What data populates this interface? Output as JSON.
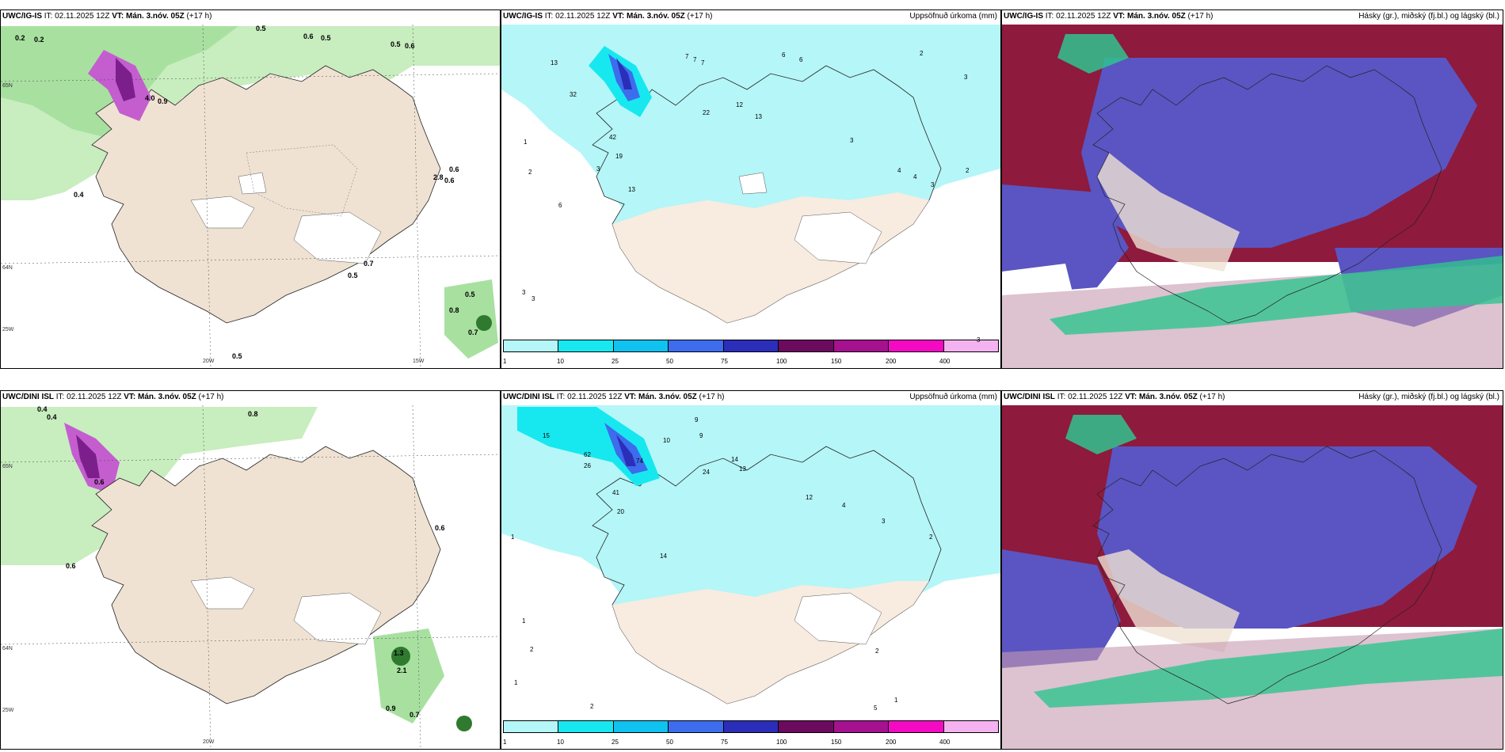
{
  "colors": {
    "land": "#efe2d3",
    "precip_light": "#b5f6f8",
    "cloud_high": "#2fc48f",
    "cloud_mid": "#5a55c2",
    "cloud_low": "#8e1a3d",
    "snow_green": "#bfe8b6",
    "snow_purple": "#c45ecf"
  },
  "rows": [
    {
      "model": "UWC/IG-IS",
      "it_label": "IT:",
      "it_value": "02.11.2025 12Z",
      "vt_label": "VT:",
      "vt_value": "Mán. 3.nóv. 05Z",
      "lead": "(+17 h)",
      "snow_labels": [
        "0.2",
        "0.2",
        "0.5",
        "0.6",
        "0.5",
        "0.5",
        "0.6",
        "4.0",
        "0.9",
        "0.4",
        "0.7",
        "0.5",
        "0.5",
        "0.8",
        "0.7",
        "0.5",
        "2.8",
        "0.6",
        "0.6"
      ],
      "precip_numbers": [
        "13",
        "7",
        "7",
        "7",
        "6",
        "6",
        "2",
        "3",
        "32",
        "22",
        "12",
        "13",
        "3",
        "42",
        "19",
        "3",
        "13",
        "6",
        "4",
        "4",
        "3",
        "3",
        "2",
        "1",
        "2",
        "3",
        "3"
      ]
    },
    {
      "model": "UWC/DINI ISL",
      "it_label": "IT:",
      "it_value": "02.11.2025 12Z",
      "vt_label": "VT:",
      "vt_value": "Mán. 3.nóv. 05Z",
      "lead": "(+17 h)",
      "snow_labels": [
        "0.4",
        "0.4",
        "0.8",
        "0.6",
        "0.6",
        "1.3",
        "0.9",
        "0.7",
        "2.1",
        "0.6"
      ],
      "precip_numbers": [
        "15",
        "9",
        "10",
        "9",
        "62",
        "26",
        "74",
        "24",
        "14",
        "13",
        "41",
        "20",
        "14",
        "12",
        "4",
        "3",
        "2",
        "1",
        "1",
        "2",
        "1",
        "2",
        "2",
        "5",
        "1"
      ]
    }
  ],
  "precip_panel": {
    "title": "Uppsöfnuð úrkoma (mm)",
    "colorbar_ticks": [
      "1",
      "10",
      "25",
      "50",
      "75",
      "100",
      "150",
      "200",
      "400"
    ],
    "colorbar_colors": [
      "#b5f6f8",
      "#17e8ef",
      "#10c2f0",
      "#3d6cec",
      "#2b2eb9",
      "#6c0a5e",
      "#a5118f",
      "#f40ac3",
      "#f4b3f0"
    ]
  },
  "cloud_panel": {
    "title": "Hásky (gr.), miðský (fj.bl.) og lágský (bl.)"
  },
  "axis_labels": {
    "lat65": "65N",
    "lat64": "64N",
    "lon20": "20W",
    "lon15": "15W",
    "lon25": "25W"
  }
}
